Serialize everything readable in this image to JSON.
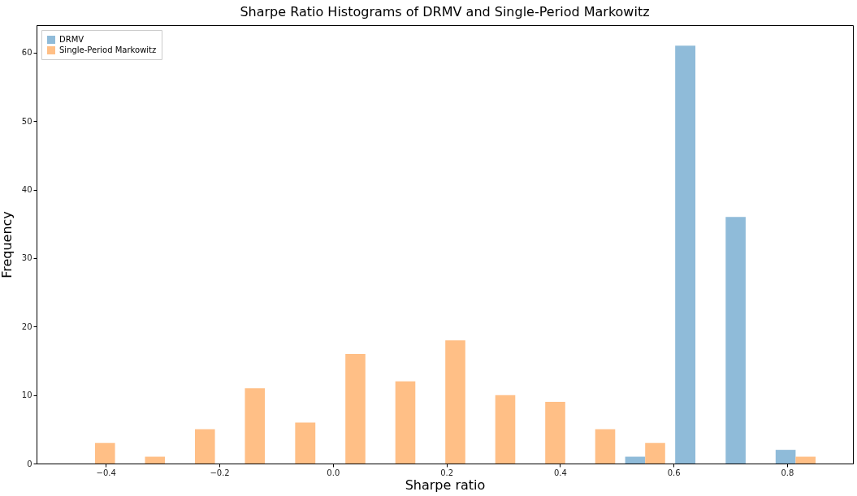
{
  "chart_data": {
    "type": "histogram",
    "title": "Sharpe Ratio Histograms of DRMV and Single-Period Markowitz",
    "xlabel": "Sharpe ratio",
    "ylabel": "Frequency",
    "bins": [
      -0.463,
      -0.375,
      -0.287,
      -0.199,
      -0.111,
      -0.022,
      0.066,
      0.154,
      0.242,
      0.33,
      0.418,
      0.506,
      0.594,
      0.683,
      0.771,
      0.859
    ],
    "series": [
      {
        "name": "DRMV",
        "color": "#8fbbd9",
        "values": [
          0,
          0,
          0,
          0,
          0,
          0,
          0,
          0,
          0,
          0,
          0,
          1,
          61,
          36,
          2
        ]
      },
      {
        "name": "Single-Period Markowitz",
        "color": "#ffbf86",
        "values": [
          3,
          1,
          5,
          11,
          6,
          16,
          12,
          18,
          10,
          9,
          5,
          3,
          0,
          0,
          1
        ]
      }
    ],
    "xlim": [
      -0.522,
      0.916
    ],
    "ylim": [
      0,
      64
    ],
    "xticks": [
      {
        "value": -0.4,
        "label": "−0.4"
      },
      {
        "value": -0.2,
        "label": "−0.2"
      },
      {
        "value": 0,
        "label": "0.0"
      },
      {
        "value": 0.2,
        "label": "0.2"
      },
      {
        "value": 0.4,
        "label": "0.4"
      },
      {
        "value": 0.6,
        "label": "0.6"
      },
      {
        "value": 0.8,
        "label": "0.8"
      }
    ],
    "yticks": [
      0,
      10,
      20,
      30,
      40,
      50,
      60
    ],
    "grid": false,
    "legend": "top left"
  }
}
